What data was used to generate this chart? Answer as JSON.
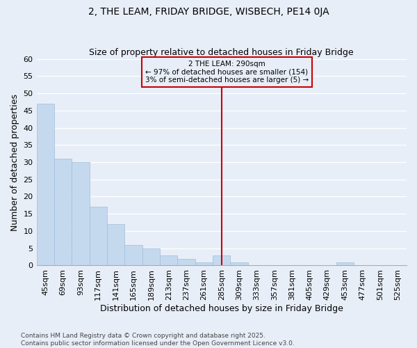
{
  "title": "2, THE LEAM, FRIDAY BRIDGE, WISBECH, PE14 0JA",
  "subtitle": "Size of property relative to detached houses in Friday Bridge",
  "xlabel": "Distribution of detached houses by size in Friday Bridge",
  "ylabel": "Number of detached properties",
  "bar_color": "#c5d9ee",
  "bar_edge_color": "#a0bcd8",
  "background_color": "#e8eef8",
  "categories": [
    "45sqm",
    "69sqm",
    "93sqm",
    "117sqm",
    "141sqm",
    "165sqm",
    "189sqm",
    "213sqm",
    "237sqm",
    "261sqm",
    "285sqm",
    "309sqm",
    "333sqm",
    "357sqm",
    "381sqm",
    "405sqm",
    "429sqm",
    "453sqm",
    "477sqm",
    "501sqm",
    "525sqm"
  ],
  "values": [
    47,
    31,
    30,
    17,
    12,
    6,
    5,
    3,
    2,
    1,
    3,
    1,
    0,
    0,
    0,
    0,
    0,
    1,
    0,
    0,
    0
  ],
  "vline_index": 10,
  "vline_color": "#cc0000",
  "annotation_text": "2 THE LEAM: 290sqm\n← 97% of detached houses are smaller (154)\n3% of semi-detached houses are larger (5) →",
  "annotation_box_color": "#cc0000",
  "ylim": [
    0,
    60
  ],
  "yticks": [
    0,
    5,
    10,
    15,
    20,
    25,
    30,
    35,
    40,
    45,
    50,
    55,
    60
  ],
  "footer": "Contains HM Land Registry data © Crown copyright and database right 2025.\nContains public sector information licensed under the Open Government Licence v3.0.",
  "grid_color": "#d0dced",
  "title_fontsize": 10,
  "subtitle_fontsize": 9,
  "axis_label_fontsize": 9,
  "tick_fontsize": 8,
  "annotation_fontsize": 7.5,
  "footer_fontsize": 6.5
}
